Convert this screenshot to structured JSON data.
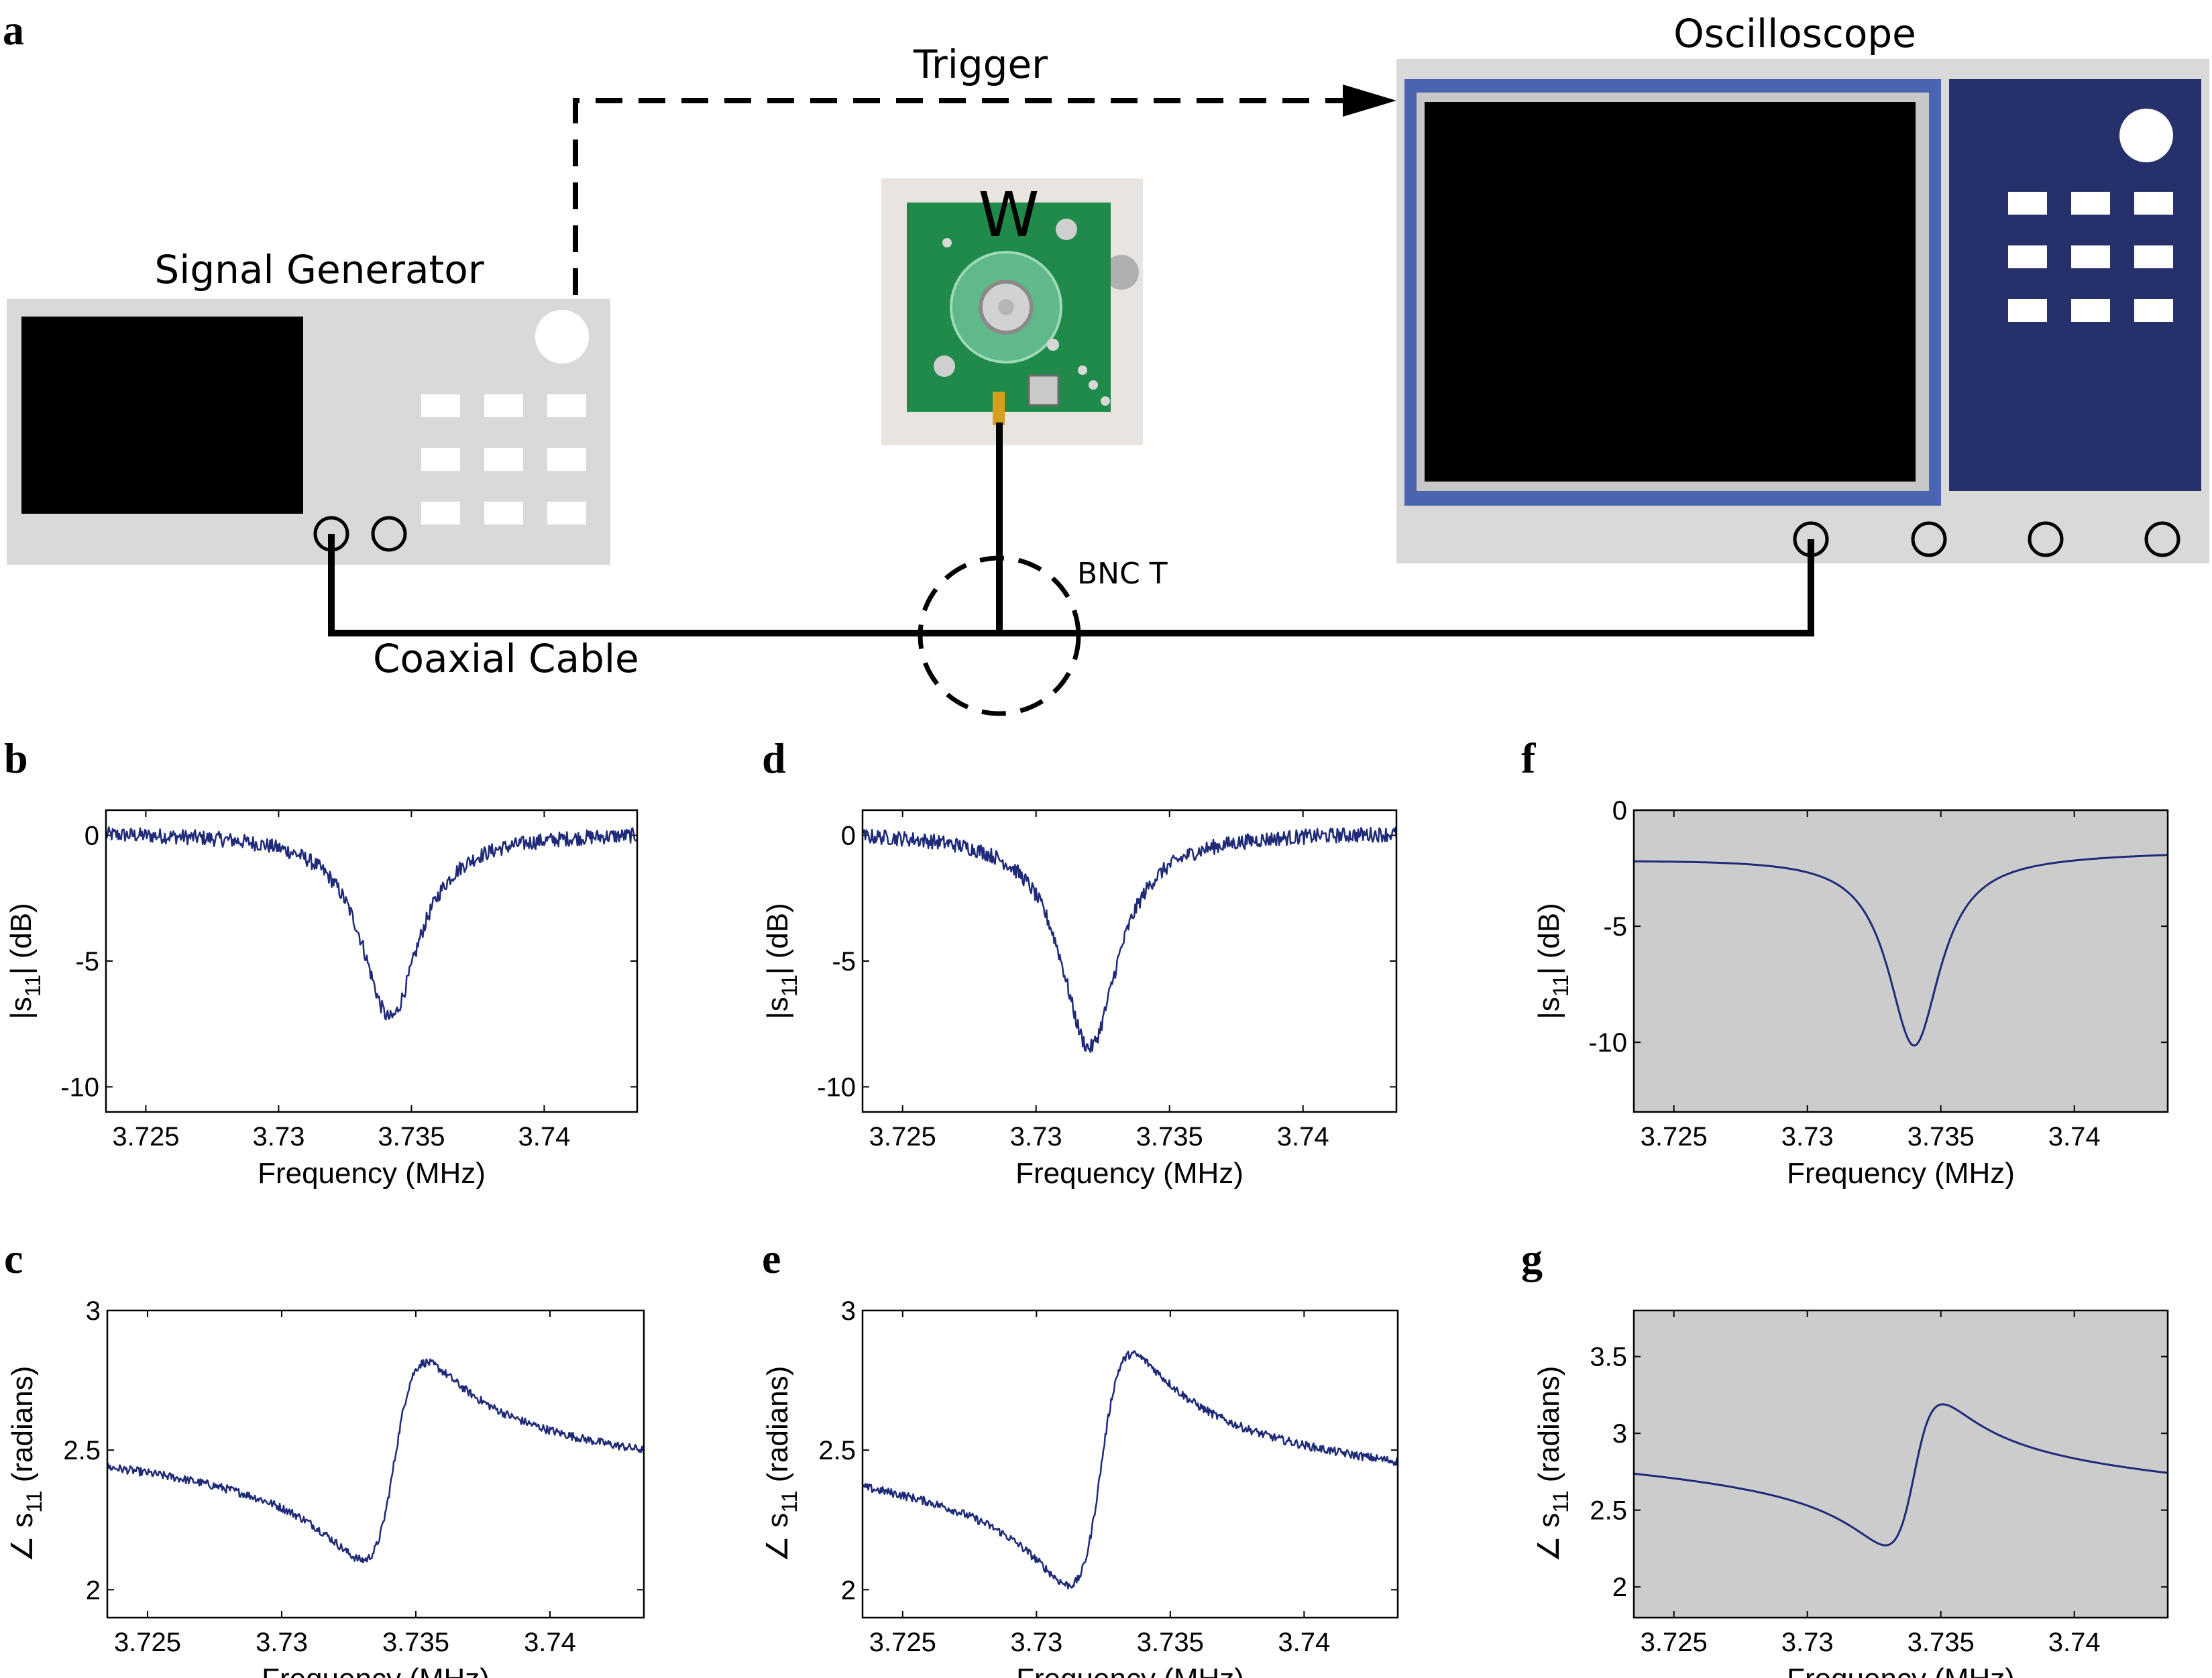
{
  "panel_letters": [
    "a",
    "b",
    "c",
    "d",
    "e",
    "f",
    "g"
  ],
  "diagram": {
    "signal_generator": "Signal Generator",
    "oscilloscope": "Oscilloscope",
    "trigger": "Trigger",
    "coaxial_cable": "Coaxial Cable",
    "bnc_t": "BNC T",
    "sample_label": "W",
    "device_icon": "pcb-photo",
    "colors": {
      "instrument_body": "#d9d9d9",
      "screen": "#000000",
      "scope_frame": "#4a64b0",
      "scope_panel": "#26316b",
      "pcb": "#1f8a4a",
      "cable": "#000000"
    }
  },
  "colors": {
    "trace": "#1f2a78",
    "sim_background": "#cccccc"
  },
  "chart_data": [
    {
      "id": "b",
      "type": "line",
      "quantity": "magnitude",
      "xlabel": "Frequency (MHz)",
      "ylabel": "|s11| (dB)",
      "xlim": [
        3.7235,
        3.7435
      ],
      "ylim": [
        -11,
        1
      ],
      "xticks": [
        "3.725",
        "3.73",
        "3.735",
        "3.74"
      ],
      "xtick_values": [
        3.725,
        3.73,
        3.735,
        3.74
      ],
      "yticks": [
        "0",
        "-5",
        "-10"
      ],
      "ytick_values": [
        0,
        -5,
        -10
      ],
      "background": "white",
      "noisy": true,
      "series": [
        {
          "f0": 3.7342,
          "width": 0.0013,
          "depth": 7.4,
          "noise": 0.3
        }
      ]
    },
    {
      "id": "c",
      "type": "line",
      "quantity": "phase",
      "xlabel": "Frequency (MHz)",
      "ylabel": "∠ s11 (radians)",
      "xlim": [
        3.7235,
        3.7435
      ],
      "ylim": [
        1.9,
        3.0
      ],
      "xticks": [
        "3.725",
        "3.73",
        "3.735",
        "3.74"
      ],
      "xtick_values": [
        3.725,
        3.73,
        3.735,
        3.74
      ],
      "yticks": [
        "3",
        "2.5",
        "2"
      ],
      "ytick_values": [
        3,
        2.5,
        2
      ],
      "background": "white",
      "noisy": true,
      "series": [
        {
          "f0": 3.7342,
          "width": 0.0012,
          "base": 2.46,
          "slope": -5.5,
          "amplitude": 0.36,
          "noise": 0.015
        }
      ]
    },
    {
      "id": "d",
      "type": "line",
      "quantity": "magnitude",
      "xlabel": "Frequency (MHz)",
      "ylabel": "|s11| (dB)",
      "xlim": [
        3.7235,
        3.7435
      ],
      "ylim": [
        -11,
        1
      ],
      "xticks": [
        "3.725",
        "3.73",
        "3.735",
        "3.74"
      ],
      "xtick_values": [
        3.725,
        3.73,
        3.735,
        3.74
      ],
      "yticks": [
        "0",
        "-5",
        "-10"
      ],
      "ytick_values": [
        0,
        -5,
        -10
      ],
      "background": "white",
      "noisy": true,
      "series": [
        {
          "f0": 3.732,
          "width": 0.0013,
          "depth": 8.6,
          "noise": 0.3
        }
      ]
    },
    {
      "id": "e",
      "type": "line",
      "quantity": "phase",
      "xlabel": "Frequency (MHz)",
      "ylabel": "∠ s11 (radians)",
      "xlim": [
        3.7235,
        3.7435
      ],
      "ylim": [
        1.9,
        3.0
      ],
      "xticks": [
        "3.725",
        "3.73",
        "3.735",
        "3.74"
      ],
      "xtick_values": [
        3.725,
        3.73,
        3.735,
        3.74
      ],
      "yticks": [
        "3",
        "2.5",
        "2"
      ],
      "ytick_values": [
        3,
        2.5,
        2
      ],
      "background": "white",
      "noisy": true,
      "series": [
        {
          "f0": 3.7324,
          "width": 0.0012,
          "base": 2.43,
          "slope": -5.5,
          "amplitude": 0.42,
          "noise": 0.015
        }
      ]
    },
    {
      "id": "f",
      "type": "line",
      "quantity": "magnitude",
      "xlabel": "Frequency (MHz)",
      "ylabel": "|s11| (dB)",
      "xlim": [
        3.7235,
        3.7435
      ],
      "ylim": [
        -13,
        0
      ],
      "xticks": [
        "3.725",
        "3.73",
        "3.735",
        "3.74"
      ],
      "xtick_values": [
        3.725,
        3.73,
        3.735,
        3.74
      ],
      "yticks": [
        "0",
        "-5",
        "-10"
      ],
      "ytick_values": [
        0,
        -5,
        -10
      ],
      "background": "gray",
      "noisy": false,
      "series": [
        {
          "f0": 3.734,
          "width": 0.0012,
          "depth": 8.2,
          "start": -2.1,
          "end": -1.8
        }
      ]
    },
    {
      "id": "g",
      "type": "line",
      "quantity": "phase",
      "xlabel": "Frequency (MHz)",
      "ylabel": "∠ s11 (radians)",
      "xlim": [
        3.7235,
        3.7435
      ],
      "ylim": [
        1.8,
        3.8
      ],
      "xticks": [
        "3.725",
        "3.73",
        "3.735",
        "3.74"
      ],
      "xtick_values": [
        3.725,
        3.73,
        3.735,
        3.74
      ],
      "yticks": [
        "3.5",
        "3",
        "2.5",
        "2"
      ],
      "ytick_values": [
        3.5,
        3,
        2.5,
        2
      ],
      "background": "gray",
      "noisy": false,
      "series": [
        {
          "f0": 3.734,
          "width": 0.0011,
          "base": 2.73,
          "slope": -10,
          "amplitude": 0.47
        }
      ]
    }
  ]
}
